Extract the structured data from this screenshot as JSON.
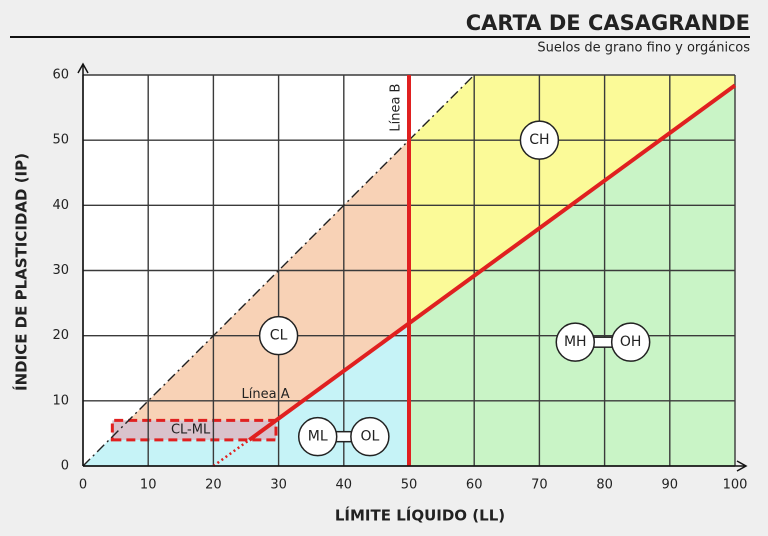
{
  "chart_data": {
    "type": "plasticity-chart",
    "title": "CARTA DE CASAGRANDE",
    "subtitle": "Suelos de grano fino y orgánicos",
    "x_label": "LÍMITE LÍQUIDO (LL)",
    "y_label": "ÍNDICE DE PLASTICIDAD (IP)",
    "xlim": [
      0,
      100
    ],
    "ylim": [
      0,
      60
    ],
    "xticks": [
      0,
      10,
      20,
      30,
      40,
      50,
      60,
      70,
      80,
      90,
      100
    ],
    "yticks": [
      0,
      10,
      20,
      30,
      40,
      50,
      60
    ],
    "grid": true,
    "regions": [
      {
        "color": "#c6f3f7",
        "x": [
          0,
          7,
          29.6,
          50,
          50
        ],
        "y": [
          0,
          7,
          7,
          21.9,
          0
        ]
      },
      {
        "color": "#f8d2b6",
        "x": [
          7,
          50,
          50,
          29.6
        ],
        "y": [
          7,
          50,
          21.9,
          7
        ]
      },
      {
        "color": "#fbfa98",
        "x": [
          50,
          60,
          100,
          100,
          50
        ],
        "y": [
          50,
          60,
          60,
          58.4,
          21.9
        ]
      },
      {
        "color": "#c9f4c6",
        "x": [
          50,
          50,
          100,
          100
        ],
        "y": [
          0,
          21.9,
          58.4,
          0
        ]
      },
      {
        "color": "#d9c2cc",
        "x": [
          4.5,
          29.6,
          29.6,
          4.5
        ],
        "y": [
          4,
          4,
          7,
          7
        ],
        "style": "dashed",
        "stroke": "#e02020"
      }
    ],
    "lines": [
      {
        "color": "#222222",
        "style": "dashdot",
        "x": [
          0,
          60
        ],
        "y": [
          0,
          60
        ]
      },
      {
        "color": "#e02020",
        "style": "dotted",
        "x": [
          20,
          25.5
        ],
        "y": [
          0,
          4
        ]
      },
      {
        "color": "#e02020",
        "style": "solid",
        "x": [
          25.5,
          100
        ],
        "y": [
          4,
          58.4
        ]
      },
      {
        "color": "#e02020",
        "style": "solid",
        "x": [
          50,
          50
        ],
        "y": [
          0,
          60
        ]
      }
    ],
    "annotations": [
      {
        "text": "Línea A",
        "x": 28,
        "y": 11
      },
      {
        "text": "Línea B",
        "x": 48,
        "y": 55,
        "rotate": -90
      },
      {
        "text": "CL-ML",
        "x": 16.5,
        "y": 5.5
      }
    ],
    "symbols": [
      {
        "labels": [
          "CH"
        ],
        "x": [
          70
        ],
        "y": 50
      },
      {
        "labels": [
          "CL"
        ],
        "x": [
          30
        ],
        "y": 20
      },
      {
        "labels": [
          "ML",
          "OL"
        ],
        "x": [
          36,
          44
        ],
        "y": 4.5
      },
      {
        "labels": [
          "MH",
          "OH"
        ],
        "x": [
          75.5,
          84
        ],
        "y": 19
      }
    ]
  }
}
